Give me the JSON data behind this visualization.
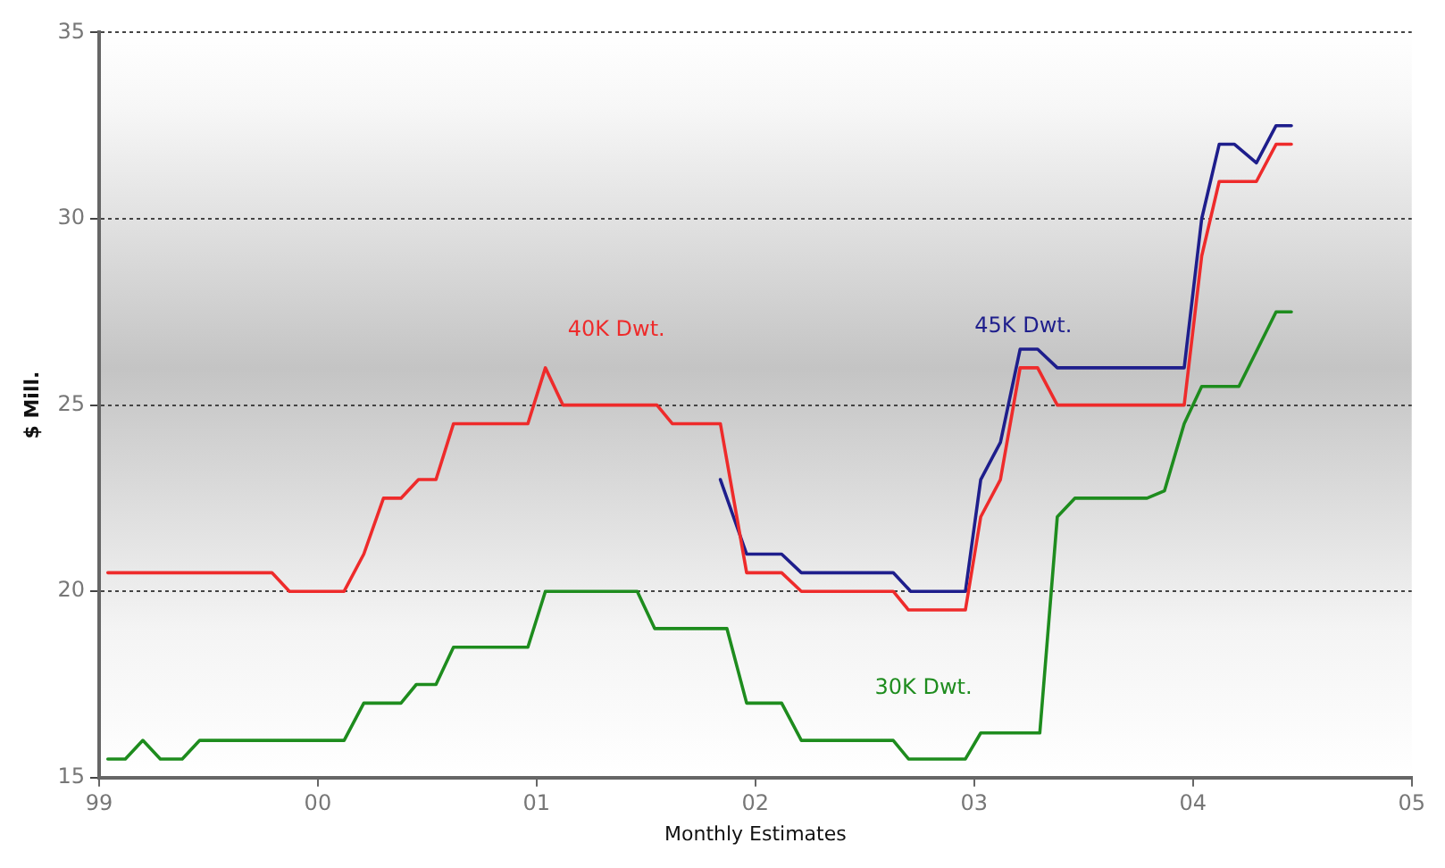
{
  "chart_data": {
    "type": "line",
    "xlabel": "Monthly Estimates",
    "ylabel": "$ Mill.",
    "xlim": [
      1999,
      2005
    ],
    "xticks": [
      {
        "value": 1999,
        "label": "99"
      },
      {
        "value": 2000,
        "label": "00"
      },
      {
        "value": 2001,
        "label": "01"
      },
      {
        "value": 2002,
        "label": "02"
      },
      {
        "value": 2003,
        "label": "03"
      },
      {
        "value": 2004,
        "label": "04"
      },
      {
        "value": 2005,
        "label": "05"
      }
    ],
    "ylim": [
      15,
      35
    ],
    "yticks": [
      15,
      20,
      25,
      30,
      35
    ],
    "grid": "y",
    "legend": false,
    "marker": "none",
    "line_style": "solid",
    "series": [
      {
        "name": "40K Dwt.",
        "color": "#ee2b2b",
        "x": [
          1999.04,
          1999.79,
          1999.87,
          2000.12,
          2000.21,
          2000.3,
          2000.38,
          2000.46,
          2000.54,
          2000.62,
          2000.96,
          2001.04,
          2001.12,
          2001.55,
          2001.62,
          2001.84,
          2001.96,
          2002.12,
          2002.21,
          2002.63,
          2002.7,
          2002.96,
          2003.03,
          2003.12,
          2003.21,
          2003.29,
          2003.38,
          2003.96,
          2004.04,
          2004.12,
          2004.29,
          2004.38,
          2004.45
        ],
        "values": [
          20.5,
          20.5,
          20,
          20,
          21,
          22.5,
          22.5,
          23,
          23,
          24.5,
          24.5,
          26,
          25,
          25,
          24.5,
          24.5,
          20.5,
          20.5,
          20,
          20,
          19.5,
          19.5,
          22,
          23,
          26,
          26,
          25,
          25,
          29,
          31,
          31,
          32,
          32
        ]
      },
      {
        "name": "45K Dwt.",
        "color": "#1e1e8c",
        "x": [
          2001.84,
          2001.96,
          2002.12,
          2002.21,
          2002.63,
          2002.71,
          2002.96,
          2003.03,
          2003.12,
          2003.21,
          2003.29,
          2003.38,
          2003.96,
          2004.04,
          2004.12,
          2004.19,
          2004.29,
          2004.38,
          2004.45
        ],
        "values": [
          23,
          21,
          21,
          20.5,
          20.5,
          20,
          20,
          23,
          24,
          26.5,
          26.5,
          26,
          26,
          30,
          32,
          32,
          31.5,
          32.5,
          32.5
        ]
      },
      {
        "name": "30K Dwt.",
        "color": "#1e8c1e",
        "x": [
          1999.04,
          1999.12,
          1999.2,
          1999.28,
          1999.38,
          1999.46,
          2000.12,
          2000.21,
          2000.38,
          2000.45,
          2000.54,
          2000.62,
          2000.96,
          2001.04,
          2001.46,
          2001.54,
          2001.87,
          2001.96,
          2002.12,
          2002.21,
          2002.63,
          2002.7,
          2002.96,
          2003.03,
          2003.3,
          2003.38,
          2003.46,
          2003.79,
          2003.87,
          2003.96,
          2004.04,
          2004.21,
          2004.38,
          2004.45
        ],
        "values": [
          15.5,
          15.5,
          16,
          15.5,
          15.5,
          16,
          16,
          17,
          17,
          17.5,
          17.5,
          18.5,
          18.5,
          20,
          20,
          19,
          19,
          17,
          17,
          16,
          16,
          15.5,
          15.5,
          16.2,
          16.2,
          22,
          22.5,
          22.5,
          22.7,
          24.5,
          25.5,
          25.5,
          27.5,
          27.5
        ]
      }
    ]
  }
}
